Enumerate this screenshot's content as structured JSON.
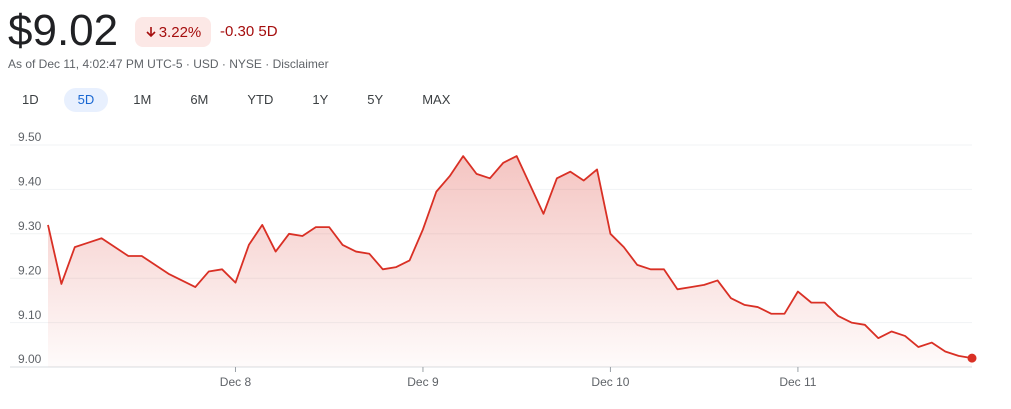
{
  "header": {
    "price": "$9.02",
    "change_percent": "3.22%",
    "change": "-0.30",
    "period": "5D",
    "as_of": "As of Dec 11, 4:02:47 PM UTC-5",
    "currency": "USD",
    "exchange": "NYSE",
    "disclaimer": "Disclaimer",
    "ranges": [
      "1D",
      "5D",
      "1M",
      "6M",
      "YTD",
      "1Y",
      "5Y",
      "MAX"
    ],
    "selected_range": 1
  },
  "chart_data": {
    "type": "line",
    "categories": [
      null,
      null,
      null,
      null,
      null,
      null,
      null,
      null,
      null,
      null,
      null,
      null,
      null,
      null,
      "Dec 8",
      null,
      null,
      null,
      null,
      null,
      null,
      null,
      null,
      null,
      null,
      null,
      null,
      null,
      "Dec 9",
      null,
      null,
      null,
      null,
      null,
      null,
      null,
      null,
      null,
      null,
      null,
      null,
      null,
      "Dec 10",
      null,
      null,
      null,
      null,
      null,
      null,
      null,
      null,
      null,
      null,
      null,
      null,
      null,
      "Dec 11",
      null,
      null,
      null,
      null,
      null,
      null,
      null,
      null,
      null,
      null,
      null,
      null,
      null
    ],
    "values": [
      9.32,
      9.187,
      9.27,
      9.28,
      9.29,
      9.27,
      9.25,
      9.25,
      9.23,
      9.21,
      9.195,
      9.18,
      9.215,
      9.22,
      9.19,
      9.275,
      9.32,
      9.26,
      9.3,
      9.295,
      9.315,
      9.315,
      9.275,
      9.26,
      9.255,
      9.22,
      9.225,
      9.24,
      9.31,
      9.395,
      9.43,
      9.475,
      9.435,
      9.425,
      9.46,
      9.475,
      9.41,
      9.345,
      9.425,
      9.44,
      9.42,
      9.445,
      9.3,
      9.27,
      9.23,
      9.22,
      9.22,
      9.175,
      9.18,
      9.185,
      9.195,
      9.155,
      9.14,
      9.135,
      9.12,
      9.12,
      9.17,
      9.145,
      9.145,
      9.115,
      9.1,
      9.095,
      9.065,
      9.08,
      9.07,
      9.045,
      9.055,
      9.035,
      9.025,
      9.02
    ],
    "color": "#d93025",
    "ylim": [
      9.0,
      9.5
    ],
    "yticks": [
      {
        "value": 9.0,
        "label": "9.00"
      },
      {
        "value": 9.1,
        "label": "9.10"
      },
      {
        "value": 9.2,
        "label": "9.20"
      },
      {
        "value": 9.3,
        "label": "9.30"
      },
      {
        "value": 9.4,
        "label": "9.40"
      },
      {
        "value": 9.5,
        "label": "9.50"
      }
    ],
    "grid": true
  }
}
